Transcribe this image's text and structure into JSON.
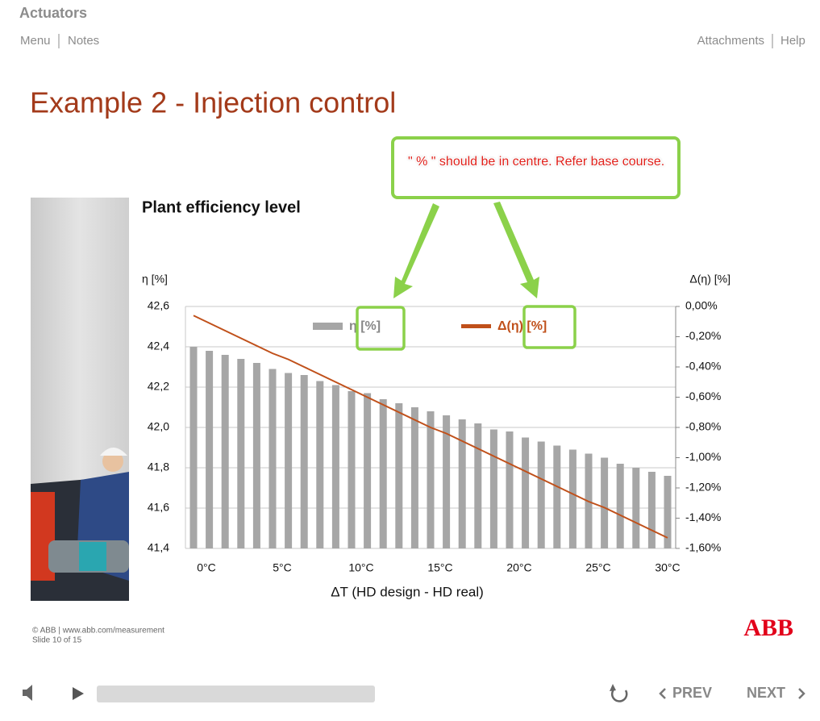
{
  "header": {
    "course": "Actuators",
    "nav_left": [
      "Menu",
      "Notes"
    ],
    "nav_right": [
      "Attachments",
      "Help"
    ]
  },
  "slide": {
    "title": "Example 2 - Injection control",
    "footer": {
      "copyright": "© ABB | www.abb.com/measurement",
      "slide_number": "Slide 10 of 15",
      "logo": "ABB"
    }
  },
  "review_comment": "\" % \" should be in centre. Refer base course.",
  "chart_data": {
    "type": "bar",
    "title": "Plant efficiency level",
    "y_label": "η [%]",
    "y2_label": "Δ(η) [%]",
    "x_label": "ΔT (HD design - HD real)",
    "categories": [
      "0°C",
      null,
      null,
      null,
      null,
      "5°C",
      null,
      null,
      null,
      null,
      "10°C",
      null,
      null,
      null,
      null,
      "15°C",
      null,
      null,
      null,
      null,
      "20°C",
      null,
      null,
      null,
      null,
      "25°C",
      null,
      null,
      null,
      null,
      "30°C"
    ],
    "series": [
      {
        "name": "η [%]",
        "type": "bar",
        "color": "#a6a6a6",
        "values": [
          42.4,
          42.38,
          42.36,
          42.34,
          42.32,
          42.29,
          42.27,
          42.26,
          42.23,
          42.21,
          42.18,
          42.17,
          42.14,
          42.12,
          42.1,
          42.08,
          42.06,
          42.04,
          42.02,
          41.99,
          41.98,
          41.95,
          41.93,
          41.91,
          41.89,
          41.87,
          41.85,
          41.82,
          41.8,
          41.78,
          41.76
        ]
      },
      {
        "name": "Δ(η) [%]",
        "type": "line",
        "axis": "y2",
        "color": "#c0501a",
        "values": [
          -0.06,
          -0.11,
          -0.16,
          -0.21,
          -0.26,
          -0.31,
          -0.35,
          -0.4,
          -0.45,
          -0.5,
          -0.55,
          -0.6,
          -0.65,
          -0.7,
          -0.75,
          -0.8,
          -0.84,
          -0.89,
          -0.94,
          -0.99,
          -1.04,
          -1.09,
          -1.14,
          -1.19,
          -1.24,
          -1.29,
          -1.33,
          -1.38,
          -1.43,
          -1.48,
          -1.53
        ]
      }
    ],
    "ylim": [
      41.4,
      42.6
    ],
    "yticks": [
      {
        "value": 41.4,
        "label": "41,4"
      },
      {
        "value": 41.6,
        "label": "41,6"
      },
      {
        "value": 41.8,
        "label": "41,8"
      },
      {
        "value": 42.0,
        "label": "42,0"
      },
      {
        "value": 42.2,
        "label": "42,2"
      },
      {
        "value": 42.4,
        "label": "42,4"
      },
      {
        "value": 42.6,
        "label": "42,6"
      }
    ],
    "y2lim": [
      -1.6,
      0
    ],
    "y2ticks": [
      {
        "value": -1.6,
        "label": "-1,60%"
      },
      {
        "value": -1.4,
        "label": "-1,40%"
      },
      {
        "value": -1.2,
        "label": "-1,20%"
      },
      {
        "value": -1.0,
        "label": "-1,00%"
      },
      {
        "value": -0.8,
        "label": "-0,80%"
      },
      {
        "value": -0.6,
        "label": "-0,60%"
      },
      {
        "value": -0.4,
        "label": "-0,40%"
      },
      {
        "value": -0.2,
        "label": "-0,20%"
      },
      {
        "value": 0,
        "label": "0,00%"
      }
    ],
    "grid": true
  },
  "player": {
    "prev": "PREV",
    "next": "NEXT"
  }
}
